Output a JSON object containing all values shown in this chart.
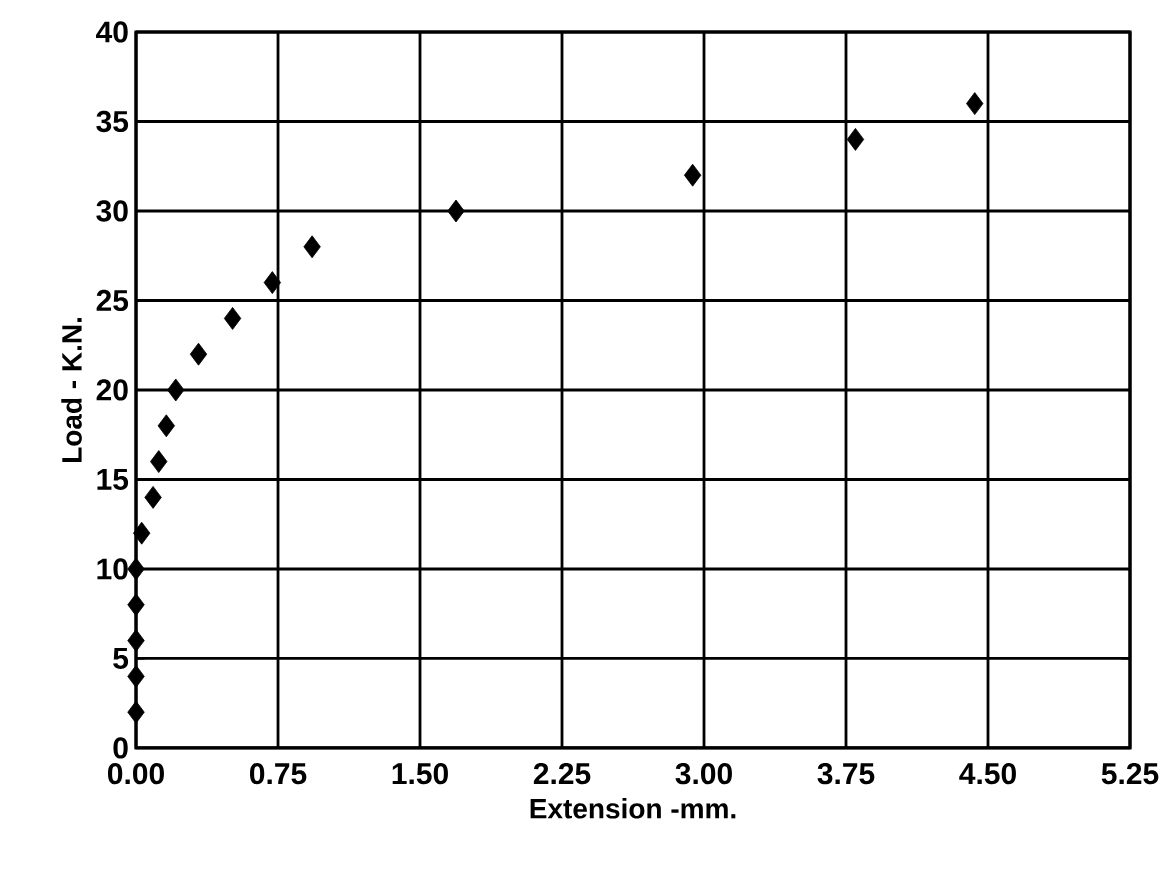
{
  "chart_data": {
    "type": "scatter",
    "xlabel": "Extension -mm.",
    "ylabel": "Load - K.N.",
    "x": [
      0,
      0,
      0,
      0,
      0,
      0.03,
      0.09,
      0.12,
      0.16,
      0.21,
      0.33,
      0.51,
      0.72,
      0.93,
      1.69,
      2.94,
      3.8,
      4.43
    ],
    "values": [
      2,
      4,
      6,
      8,
      10,
      12,
      14,
      16,
      18,
      20,
      22,
      24,
      26,
      28,
      30,
      32,
      34,
      36
    ],
    "color": "#000000",
    "marker": "diamond",
    "grid": true,
    "xlim": [
      0,
      5.25
    ],
    "ylim": [
      0,
      40
    ],
    "xticks": [
      {
        "value": 0,
        "label": "0.00"
      },
      {
        "value": 0.75,
        "label": "0.75"
      },
      {
        "value": 1.5,
        "label": "1.50"
      },
      {
        "value": 2.25,
        "label": "2.25"
      },
      {
        "value": 3,
        "label": "3.00"
      },
      {
        "value": 3.75,
        "label": "3.75"
      },
      {
        "value": 4.5,
        "label": "4.50"
      },
      {
        "value": 5.25,
        "label": "5.25"
      }
    ],
    "yticks": [
      0,
      5,
      10,
      15,
      20,
      25,
      30,
      35,
      40
    ]
  }
}
